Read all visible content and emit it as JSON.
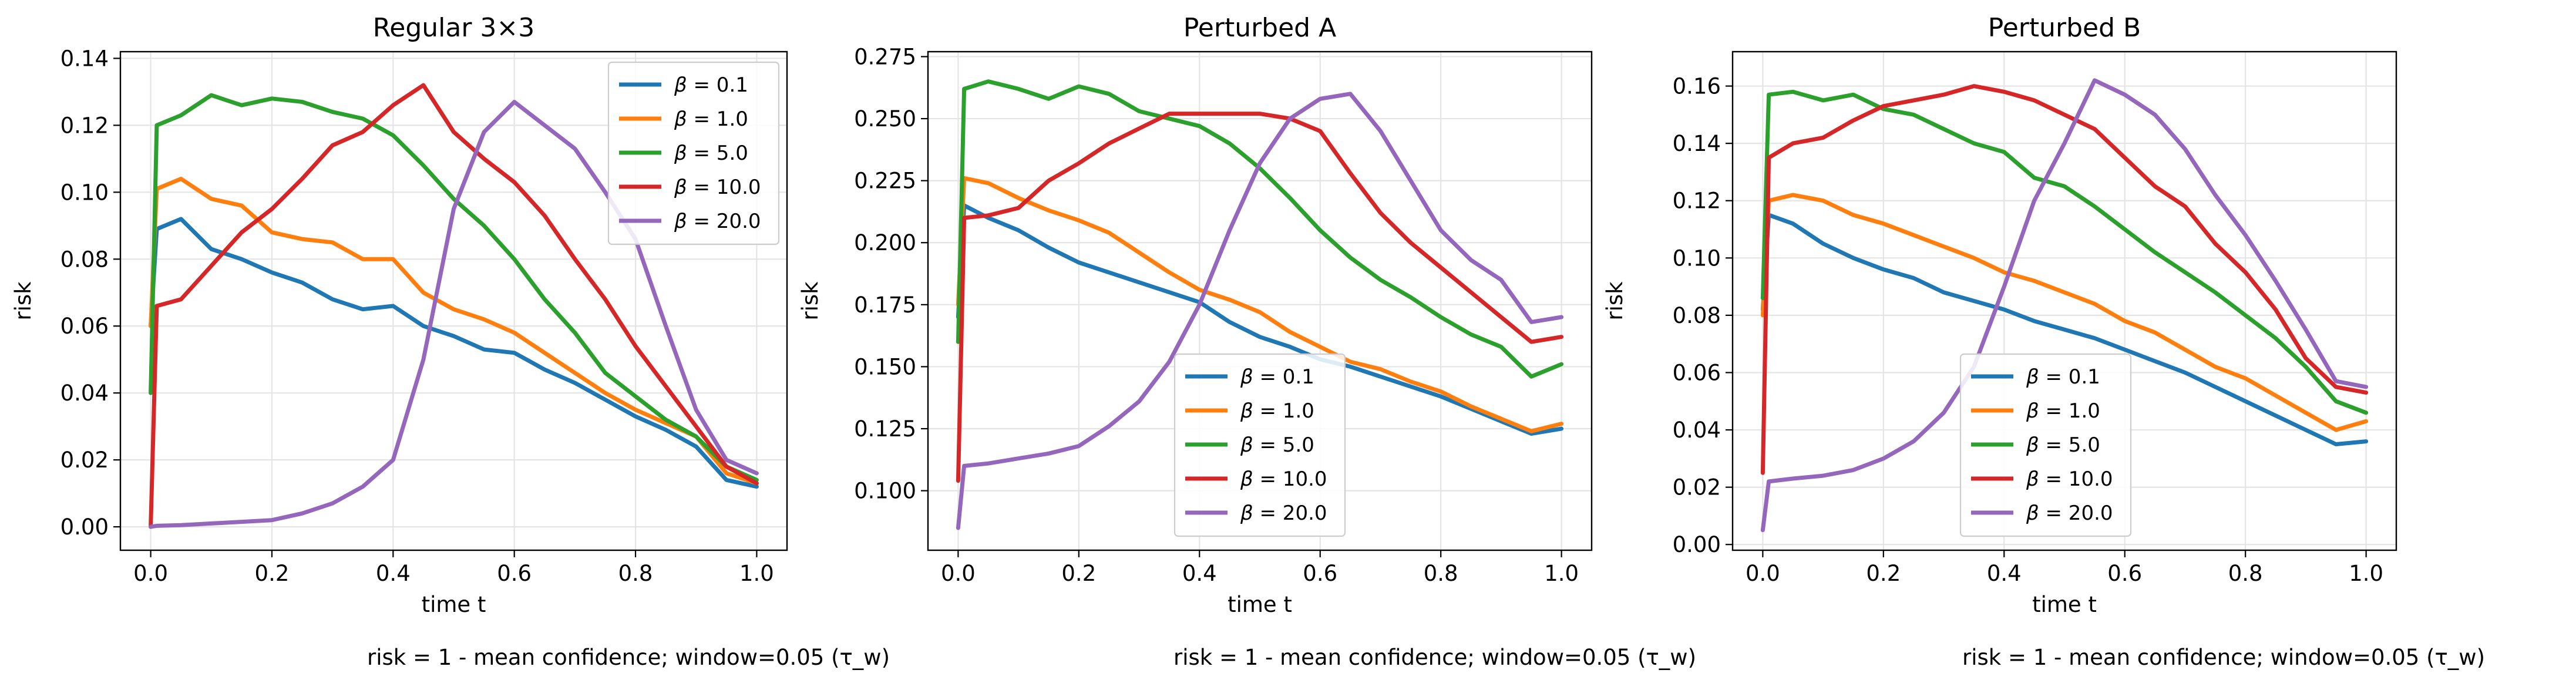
{
  "chart_data": [
    {
      "type": "line",
      "title": "Regular 3×3",
      "xlabel": "time t",
      "ylabel": "risk",
      "caption": "risk = 1 - mean confidence; window=0.05 (τ_w)",
      "xlim": [
        -0.05,
        1.05
      ],
      "ylim": [
        -0.007,
        0.142
      ],
      "xticks": [
        "0.0",
        "0.2",
        "0.4",
        "0.6",
        "0.8",
        "1.0"
      ],
      "xtick_values": [
        0.0,
        0.2,
        0.4,
        0.6,
        0.8,
        1.0
      ],
      "yticks": [
        "0.00",
        "0.02",
        "0.04",
        "0.06",
        "0.08",
        "0.10",
        "0.12",
        "0.14"
      ],
      "ytick_values": [
        0.0,
        0.02,
        0.04,
        0.06,
        0.08,
        0.1,
        0.12,
        0.14
      ],
      "legend_position": "upper right",
      "x": [
        0.0,
        0.01,
        0.05,
        0.1,
        0.15,
        0.2,
        0.25,
        0.3,
        0.35,
        0.4,
        0.45,
        0.5,
        0.55,
        0.6,
        0.65,
        0.7,
        0.75,
        0.8,
        0.85,
        0.9,
        0.95,
        1.0
      ],
      "series": [
        {
          "name": "β = 0.1",
          "label_prefix": "β",
          "label_value": "0.1",
          "color": "#1f77b4",
          "values": [
            0.06,
            0.089,
            0.092,
            0.083,
            0.08,
            0.076,
            0.073,
            0.068,
            0.065,
            0.066,
            0.06,
            0.057,
            0.053,
            0.052,
            0.047,
            0.043,
            0.038,
            0.033,
            0.029,
            0.024,
            0.014,
            0.012
          ]
        },
        {
          "name": "β = 1.0",
          "label_prefix": "β",
          "label_value": "1.0",
          "color": "#ff7f0e",
          "values": [
            0.06,
            0.101,
            0.104,
            0.098,
            0.096,
            0.088,
            0.086,
            0.085,
            0.08,
            0.08,
            0.07,
            0.065,
            0.062,
            0.058,
            0.052,
            0.046,
            0.04,
            0.035,
            0.031,
            0.027,
            0.016,
            0.013
          ]
        },
        {
          "name": "β = 5.0",
          "label_prefix": "β",
          "label_value": "5.0",
          "color": "#2ca02c",
          "values": [
            0.04,
            0.12,
            0.123,
            0.129,
            0.126,
            0.128,
            0.127,
            0.124,
            0.122,
            0.117,
            0.108,
            0.098,
            0.09,
            0.08,
            0.068,
            0.058,
            0.046,
            0.039,
            0.032,
            0.027,
            0.018,
            0.014
          ]
        },
        {
          "name": "β = 10.0",
          "label_prefix": "β",
          "label_value": "10.0",
          "color": "#d62728",
          "values": [
            0.0,
            0.066,
            0.068,
            0.078,
            0.088,
            0.095,
            0.104,
            0.114,
            0.118,
            0.126,
            0.132,
            0.118,
            0.11,
            0.103,
            0.093,
            0.08,
            0.068,
            0.054,
            0.042,
            0.03,
            0.018,
            0.013
          ]
        },
        {
          "name": "β = 20.0",
          "label_prefix": "β",
          "label_value": "20.0",
          "color": "#9467bd",
          "values": [
            0.0,
            0.0003,
            0.0005,
            0.001,
            0.0015,
            0.002,
            0.004,
            0.007,
            0.012,
            0.02,
            0.05,
            0.095,
            0.118,
            0.127,
            0.12,
            0.113,
            0.1,
            0.086,
            0.06,
            0.035,
            0.02,
            0.016
          ]
        }
      ]
    },
    {
      "type": "line",
      "title": "Perturbed A",
      "xlabel": "time t",
      "ylabel": "risk",
      "caption": "risk = 1 - mean confidence; window=0.05 (τ_w)",
      "xlim": [
        -0.05,
        1.05
      ],
      "ylim": [
        0.076,
        0.277
      ],
      "xticks": [
        "0.0",
        "0.2",
        "0.4",
        "0.6",
        "0.8",
        "1.0"
      ],
      "xtick_values": [
        0.0,
        0.2,
        0.4,
        0.6,
        0.8,
        1.0
      ],
      "yticks": [
        "0.100",
        "0.125",
        "0.150",
        "0.175",
        "0.200",
        "0.225",
        "0.250",
        "0.275"
      ],
      "ytick_values": [
        0.1,
        0.125,
        0.15,
        0.175,
        0.2,
        0.225,
        0.25,
        0.275
      ],
      "legend_position": "lower center",
      "x": [
        0.0,
        0.01,
        0.05,
        0.1,
        0.15,
        0.2,
        0.25,
        0.3,
        0.35,
        0.4,
        0.45,
        0.5,
        0.55,
        0.6,
        0.65,
        0.7,
        0.75,
        0.8,
        0.85,
        0.9,
        0.95,
        1.0
      ],
      "series": [
        {
          "name": "β = 0.1",
          "label_prefix": "β",
          "label_value": "0.1",
          "color": "#1f77b4",
          "values": [
            0.17,
            0.215,
            0.21,
            0.205,
            0.198,
            0.192,
            0.188,
            0.184,
            0.18,
            0.176,
            0.168,
            0.162,
            0.158,
            0.153,
            0.15,
            0.146,
            0.142,
            0.138,
            0.133,
            0.128,
            0.123,
            0.125
          ]
        },
        {
          "name": "β = 1.0",
          "label_prefix": "β",
          "label_value": "1.0",
          "color": "#ff7f0e",
          "values": [
            0.175,
            0.226,
            0.224,
            0.218,
            0.213,
            0.209,
            0.204,
            0.196,
            0.188,
            0.181,
            0.177,
            0.172,
            0.164,
            0.158,
            0.152,
            0.149,
            0.144,
            0.14,
            0.134,
            0.129,
            0.124,
            0.127
          ]
        },
        {
          "name": "β = 5.0",
          "label_prefix": "β",
          "label_value": "5.0",
          "color": "#2ca02c",
          "values": [
            0.16,
            0.262,
            0.265,
            0.262,
            0.258,
            0.263,
            0.26,
            0.253,
            0.25,
            0.247,
            0.24,
            0.23,
            0.218,
            0.205,
            0.194,
            0.185,
            0.178,
            0.17,
            0.163,
            0.158,
            0.146,
            0.151
          ]
        },
        {
          "name": "β = 10.0",
          "label_prefix": "β",
          "label_value": "10.0",
          "color": "#d62728",
          "values": [
            0.104,
            0.21,
            0.211,
            0.214,
            0.225,
            0.232,
            0.24,
            0.246,
            0.252,
            0.252,
            0.252,
            0.252,
            0.25,
            0.245,
            0.228,
            0.212,
            0.2,
            0.19,
            0.18,
            0.17,
            0.16,
            0.162
          ]
        },
        {
          "name": "β = 20.0",
          "label_prefix": "β",
          "label_value": "20.0",
          "color": "#9467bd",
          "values": [
            0.085,
            0.11,
            0.111,
            0.113,
            0.115,
            0.118,
            0.126,
            0.136,
            0.152,
            0.175,
            0.205,
            0.232,
            0.25,
            0.258,
            0.26,
            0.245,
            0.225,
            0.205,
            0.193,
            0.185,
            0.168,
            0.17
          ]
        }
      ]
    },
    {
      "type": "line",
      "title": "Perturbed B",
      "xlabel": "time t",
      "ylabel": "risk",
      "caption": "risk = 1 - mean confidence; window=0.05 (τ_w)",
      "xlim": [
        -0.05,
        1.05
      ],
      "ylim": [
        -0.002,
        0.172
      ],
      "xticks": [
        "0.0",
        "0.2",
        "0.4",
        "0.6",
        "0.8",
        "1.0"
      ],
      "xtick_values": [
        0.0,
        0.2,
        0.4,
        0.6,
        0.8,
        1.0
      ],
      "yticks": [
        "0.00",
        "0.02",
        "0.04",
        "0.06",
        "0.08",
        "0.10",
        "0.12",
        "0.14",
        "0.16"
      ],
      "ytick_values": [
        0.0,
        0.02,
        0.04,
        0.06,
        0.08,
        0.1,
        0.12,
        0.14,
        0.16
      ],
      "legend_position": "lower center",
      "x": [
        0.0,
        0.01,
        0.05,
        0.1,
        0.15,
        0.2,
        0.25,
        0.3,
        0.35,
        0.4,
        0.45,
        0.5,
        0.55,
        0.6,
        0.65,
        0.7,
        0.75,
        0.8,
        0.85,
        0.9,
        0.95,
        1.0
      ],
      "series": [
        {
          "name": "β = 0.1",
          "label_prefix": "β",
          "label_value": "0.1",
          "color": "#1f77b4",
          "values": [
            0.082,
            0.115,
            0.112,
            0.105,
            0.1,
            0.096,
            0.093,
            0.088,
            0.085,
            0.082,
            0.078,
            0.075,
            0.072,
            0.068,
            0.064,
            0.06,
            0.055,
            0.05,
            0.045,
            0.04,
            0.035,
            0.036
          ]
        },
        {
          "name": "β = 1.0",
          "label_prefix": "β",
          "label_value": "1.0",
          "color": "#ff7f0e",
          "values": [
            0.08,
            0.12,
            0.122,
            0.12,
            0.115,
            0.112,
            0.108,
            0.104,
            0.1,
            0.095,
            0.092,
            0.088,
            0.084,
            0.078,
            0.074,
            0.068,
            0.062,
            0.058,
            0.052,
            0.046,
            0.04,
            0.043
          ]
        },
        {
          "name": "β = 5.0",
          "label_prefix": "β",
          "label_value": "5.0",
          "color": "#2ca02c",
          "values": [
            0.086,
            0.157,
            0.158,
            0.155,
            0.157,
            0.152,
            0.15,
            0.145,
            0.14,
            0.137,
            0.128,
            0.125,
            0.118,
            0.11,
            0.102,
            0.095,
            0.088,
            0.08,
            0.072,
            0.062,
            0.05,
            0.046
          ]
        },
        {
          "name": "β = 10.0",
          "label_prefix": "β",
          "label_value": "10.0",
          "color": "#d62728",
          "values": [
            0.025,
            0.135,
            0.14,
            0.142,
            0.148,
            0.153,
            0.155,
            0.157,
            0.16,
            0.158,
            0.155,
            0.15,
            0.145,
            0.135,
            0.125,
            0.118,
            0.105,
            0.095,
            0.082,
            0.065,
            0.055,
            0.053
          ]
        },
        {
          "name": "β = 20.0",
          "label_prefix": "β",
          "label_value": "20.0",
          "color": "#9467bd",
          "values": [
            0.005,
            0.022,
            0.023,
            0.024,
            0.026,
            0.03,
            0.036,
            0.046,
            0.062,
            0.09,
            0.12,
            0.14,
            0.162,
            0.157,
            0.15,
            0.138,
            0.122,
            0.108,
            0.092,
            0.075,
            0.057,
            0.055
          ]
        }
      ]
    }
  ]
}
